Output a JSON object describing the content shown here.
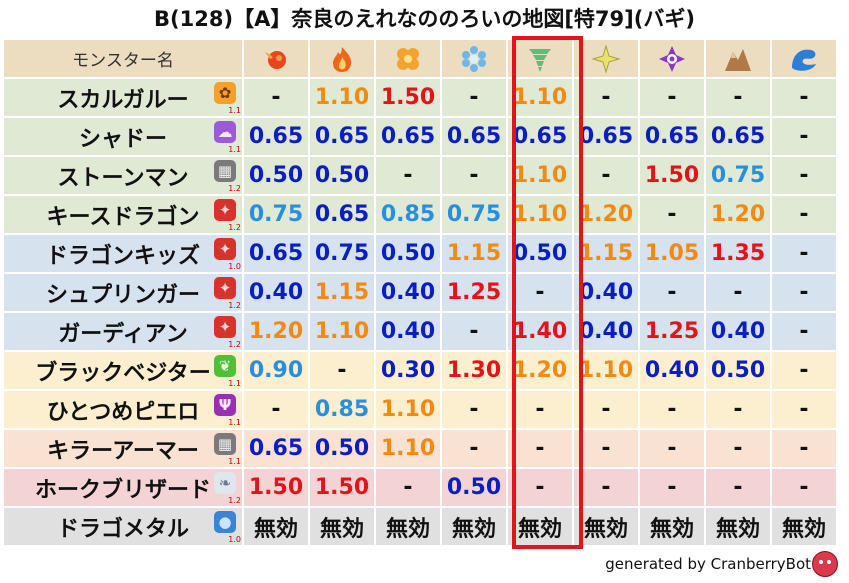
{
  "title": "B(128)【A】奈良のえれなののろいの地図[特79](バギ)",
  "header": {
    "name_label": "モンスター名",
    "elements": [
      {
        "icon": "fire-ball-icon",
        "color": "#e8461c"
      },
      {
        "icon": "flame-icon",
        "color": "#f0641e"
      },
      {
        "icon": "explosion-icon",
        "color": "#f2a431"
      },
      {
        "icon": "ice-crystal-icon",
        "color": "#6fb7e6"
      },
      {
        "icon": "wind-tornado-icon",
        "color": "#5bbf7a"
      },
      {
        "icon": "lightning-icon",
        "color": "#e8e070"
      },
      {
        "icon": "darkness-icon",
        "color": "#8a38c8"
      },
      {
        "icon": "earth-rock-icon",
        "color": "#b07a48"
      },
      {
        "icon": "water-wave-icon",
        "color": "#2d7ed6"
      }
    ]
  },
  "colors": {
    "red": "#e4121b",
    "orange": "#f08a12",
    "dark_blue": "#0b1ec2",
    "light_blue": "#2a8ee0",
    "black": "#111111",
    "highlight": "#e0141b"
  },
  "rows": [
    {
      "name": "スカルガルー",
      "icon": "paw-icon",
      "ver": "1.1",
      "bg": "#dfe9d4",
      "cells": [
        [
          "-",
          "black"
        ],
        [
          "1.10",
          "orange"
        ],
        [
          "1.50",
          "red"
        ],
        [
          "-",
          "black"
        ],
        [
          "1.10",
          "orange"
        ],
        [
          "-",
          "black"
        ],
        [
          "-",
          "black"
        ],
        [
          "-",
          "black"
        ],
        [
          "-",
          "black"
        ]
      ]
    },
    {
      "name": "シャドー",
      "icon": "shadow-icon",
      "ver": "1.1",
      "bg": "#dfe9d4",
      "cells": [
        [
          "0.65",
          "dark_blue"
        ],
        [
          "0.65",
          "dark_blue"
        ],
        [
          "0.65",
          "dark_blue"
        ],
        [
          "0.65",
          "dark_blue"
        ],
        [
          "0.65",
          "dark_blue"
        ],
        [
          "0.65",
          "dark_blue"
        ],
        [
          "0.65",
          "dark_blue"
        ],
        [
          "0.65",
          "dark_blue"
        ],
        [
          "-",
          "black"
        ]
      ]
    },
    {
      "name": "ストーンマン",
      "icon": "brick-icon",
      "ver": "1.2",
      "bg": "#dfe9d4",
      "cells": [
        [
          "0.50",
          "dark_blue"
        ],
        [
          "0.50",
          "dark_blue"
        ],
        [
          "-",
          "black"
        ],
        [
          "-",
          "black"
        ],
        [
          "1.10",
          "orange"
        ],
        [
          "-",
          "black"
        ],
        [
          "1.50",
          "red"
        ],
        [
          "0.75",
          "light_blue"
        ],
        [
          "-",
          "black"
        ]
      ]
    },
    {
      "name": "キースドラゴン",
      "icon": "dragon-icon",
      "ver": "1.2",
      "bg": "#dfe9d4",
      "cells": [
        [
          "0.75",
          "light_blue"
        ],
        [
          "0.65",
          "dark_blue"
        ],
        [
          "0.85",
          "light_blue"
        ],
        [
          "0.75",
          "light_blue"
        ],
        [
          "1.10",
          "orange"
        ],
        [
          "1.20",
          "orange"
        ],
        [
          "-",
          "black"
        ],
        [
          "1.20",
          "orange"
        ],
        [
          "-",
          "black"
        ]
      ]
    },
    {
      "name": "ドラゴンキッズ",
      "icon": "dragon-icon",
      "ver": "1.0",
      "bg": "#d6e2ee",
      "cells": [
        [
          "0.65",
          "dark_blue"
        ],
        [
          "0.75",
          "dark_blue"
        ],
        [
          "0.50",
          "dark_blue"
        ],
        [
          "1.15",
          "orange"
        ],
        [
          "0.50",
          "dark_blue"
        ],
        [
          "1.15",
          "orange"
        ],
        [
          "1.05",
          "orange"
        ],
        [
          "1.35",
          "red"
        ],
        [
          "-",
          "black"
        ]
      ]
    },
    {
      "name": "シュプリンガー",
      "icon": "dragon-icon",
      "ver": "1.2",
      "bg": "#d6e2ee",
      "cells": [
        [
          "0.40",
          "dark_blue"
        ],
        [
          "1.15",
          "orange"
        ],
        [
          "0.40",
          "dark_blue"
        ],
        [
          "1.25",
          "red"
        ],
        [
          "-",
          "black"
        ],
        [
          "0.40",
          "dark_blue"
        ],
        [
          "-",
          "black"
        ],
        [
          "-",
          "black"
        ],
        [
          "-",
          "black"
        ]
      ]
    },
    {
      "name": "ガーディアン",
      "icon": "dragon-icon",
      "ver": "1.2",
      "bg": "#d6e2ee",
      "cells": [
        [
          "1.20",
          "orange"
        ],
        [
          "1.10",
          "orange"
        ],
        [
          "0.40",
          "dark_blue"
        ],
        [
          "-",
          "black"
        ],
        [
          "1.40",
          "red"
        ],
        [
          "0.40",
          "dark_blue"
        ],
        [
          "1.25",
          "red"
        ],
        [
          "0.40",
          "dark_blue"
        ],
        [
          "-",
          "black"
        ]
      ]
    },
    {
      "name": "ブラックベジター",
      "icon": "leaf-icon",
      "ver": "1.1",
      "bg": "#fcefcf",
      "cells": [
        [
          "0.90",
          "light_blue"
        ],
        [
          "-",
          "black"
        ],
        [
          "0.30",
          "dark_blue"
        ],
        [
          "1.30",
          "red"
        ],
        [
          "1.20",
          "orange"
        ],
        [
          "1.10",
          "orange"
        ],
        [
          "0.40",
          "dark_blue"
        ],
        [
          "0.50",
          "dark_blue"
        ],
        [
          "-",
          "black"
        ]
      ]
    },
    {
      "name": "ひとつめピエロ",
      "icon": "trident-icon",
      "ver": "1.1",
      "bg": "#fcefcf",
      "cells": [
        [
          "-",
          "black"
        ],
        [
          "0.85",
          "light_blue"
        ],
        [
          "1.10",
          "orange"
        ],
        [
          "-",
          "black"
        ],
        [
          "-",
          "black"
        ],
        [
          "-",
          "black"
        ],
        [
          "-",
          "black"
        ],
        [
          "-",
          "black"
        ],
        [
          "-",
          "black"
        ]
      ]
    },
    {
      "name": "キラーアーマー",
      "icon": "brick-icon",
      "ver": "1.1",
      "bg": "#fae2d2",
      "cells": [
        [
          "0.65",
          "dark_blue"
        ],
        [
          "0.50",
          "dark_blue"
        ],
        [
          "1.10",
          "orange"
        ],
        [
          "-",
          "black"
        ],
        [
          "-",
          "black"
        ],
        [
          "-",
          "black"
        ],
        [
          "-",
          "black"
        ],
        [
          "-",
          "black"
        ],
        [
          "-",
          "black"
        ]
      ]
    },
    {
      "name": "ホークブリザード",
      "icon": "wing-icon",
      "ver": "1.2",
      "bg": "#f3d3d3",
      "cells": [
        [
          "1.50",
          "red"
        ],
        [
          "1.50",
          "red"
        ],
        [
          "-",
          "black"
        ],
        [
          "0.50",
          "dark_blue"
        ],
        [
          "-",
          "black"
        ],
        [
          "-",
          "black"
        ],
        [
          "-",
          "black"
        ],
        [
          "-",
          "black"
        ],
        [
          "-",
          "black"
        ]
      ]
    },
    {
      "name": "ドラゴメタル",
      "icon": "metal-slime-icon",
      "ver": "1.0",
      "bg": "#e0e0e0",
      "cells": [
        [
          "無効",
          "black"
        ],
        [
          "無効",
          "black"
        ],
        [
          "無効",
          "black"
        ],
        [
          "無効",
          "black"
        ],
        [
          "無効",
          "black"
        ],
        [
          "無効",
          "black"
        ],
        [
          "無効",
          "black"
        ],
        [
          "無効",
          "black"
        ],
        [
          "無効",
          "black"
        ]
      ]
    }
  ],
  "footer": {
    "text": "generated by CranberryBot",
    "avatar_icon": "cranberry-bot-icon"
  }
}
